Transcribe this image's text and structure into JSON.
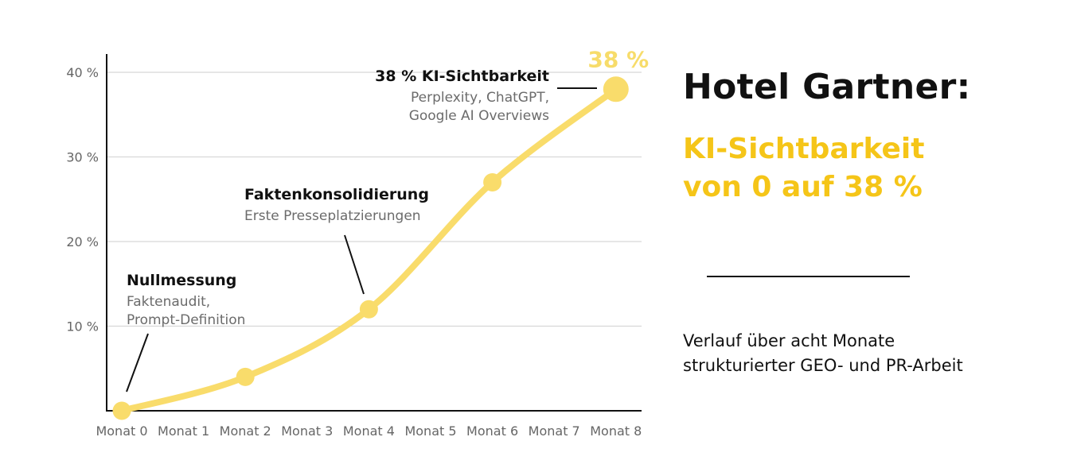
{
  "chart_data": {
    "type": "line",
    "categories": [
      "Monat 0",
      "Monat 1",
      "Monat 2",
      "Monat 3",
      "Monat 4",
      "Monat 5",
      "Monat 6",
      "Monat 7",
      "Monat 8"
    ],
    "series": [
      {
        "points": [
          {
            "x": "Monat 0",
            "y": 0
          },
          {
            "x": "Monat 2",
            "y": 4
          },
          {
            "x": "Monat 4",
            "y": 12
          },
          {
            "x": "Monat 6",
            "y": 27
          },
          {
            "x": "Monat 8",
            "y": 38
          }
        ]
      }
    ],
    "ylim": [
      0,
      40
    ],
    "yticks": [
      {
        "value": 10,
        "label": "10 %"
      },
      {
        "value": 20,
        "label": "20 %"
      },
      {
        "value": 30,
        "label": "30 %"
      },
      {
        "value": 40,
        "label": "40 %"
      }
    ],
    "grid": true,
    "line_color": "#f9dc6b",
    "end_label": "38 %",
    "annotations": [
      {
        "title": "Nullmessung",
        "lines": [
          "Faktenaudit,",
          "Prompt-Definition"
        ],
        "target": "Monat 0"
      },
      {
        "title": "Faktenkonsolidierung",
        "lines": [
          "Erste Presseplatzierungen"
        ],
        "target": "Monat 4"
      },
      {
        "title": "38 % KI-Sichtbarkeit",
        "lines": [
          "Perplexity, ChatGPT,",
          "Google AI Overviews"
        ],
        "target": "Monat 8"
      }
    ]
  },
  "side": {
    "headline": "Hotel Gartner:",
    "subhead_lines": [
      "KI-Sichtbarkeit",
      "von 0 auf 38 %"
    ],
    "description_lines": [
      "Verlauf über acht Monate",
      "strukturierter GEO- und PR-Arbeit"
    ]
  },
  "colors": {
    "accent": "#f5c518",
    "line": "#f9dc6b",
    "text": "#111111",
    "muted": "#6b6b6b",
    "grid": "#d8d8d8"
  }
}
